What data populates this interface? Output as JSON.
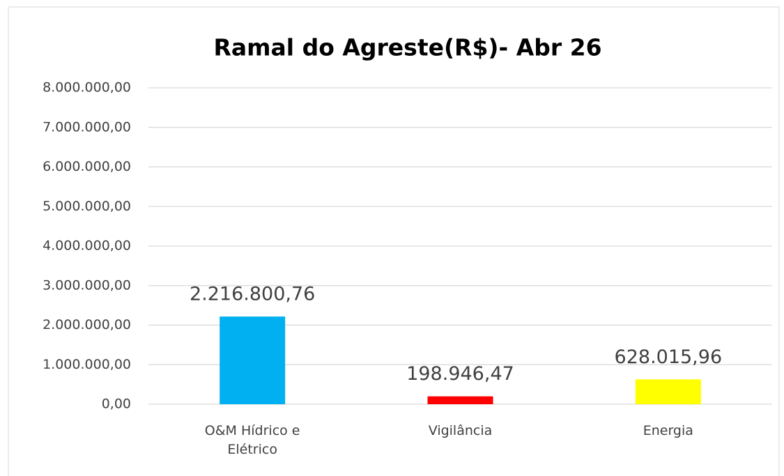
{
  "chart_data": {
    "type": "bar",
    "title": "Ramal do Agreste(R$)- Abr 26",
    "categories": [
      "O&M Hídrico e Elétrico",
      "Vigilância",
      "Energia"
    ],
    "values": [
      2216800.76,
      198946.47,
      628015.96
    ],
    "value_labels": [
      "2.216.800,76",
      "198.946,47",
      "628.015,96"
    ],
    "colors": [
      "#00b0f0",
      "#ff0000",
      "#ffff00"
    ],
    "ylim": [
      0,
      8000000
    ],
    "yticks": [
      {
        "value": 0,
        "label": "0,00"
      },
      {
        "value": 1000000,
        "label": "1.000.000,00"
      },
      {
        "value": 2000000,
        "label": "2.000.000,00"
      },
      {
        "value": 3000000,
        "label": "3.000.000,00"
      },
      {
        "value": 4000000,
        "label": "4.000.000,00"
      },
      {
        "value": 5000000,
        "label": "5.000.000,00"
      },
      {
        "value": 6000000,
        "label": "6.000.000,00"
      },
      {
        "value": 7000000,
        "label": "7.000.000,00"
      },
      {
        "value": 8000000,
        "label": "8.000.000,00"
      }
    ],
    "grid": true
  }
}
